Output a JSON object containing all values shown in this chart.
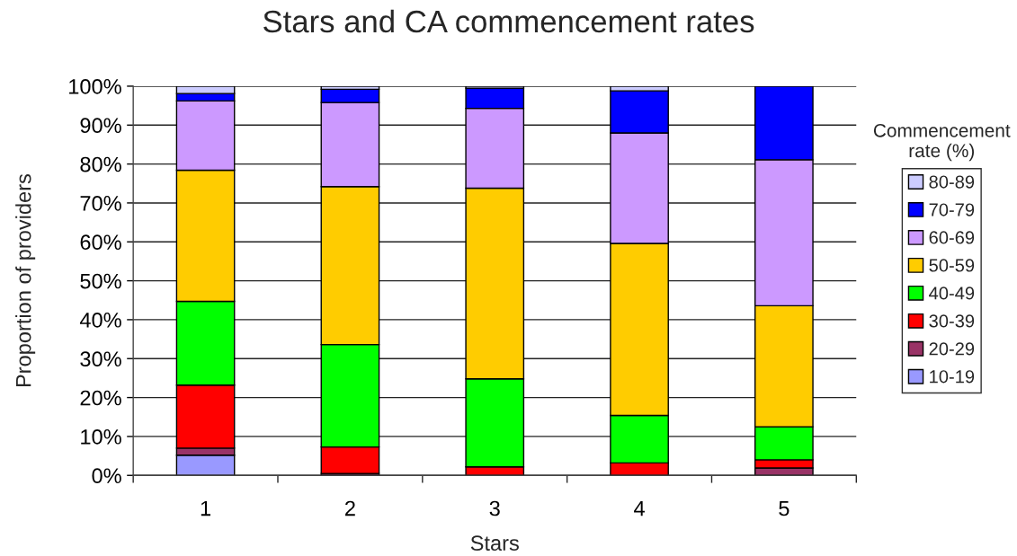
{
  "chart_data": {
    "type": "bar",
    "title": "Stars and CA commencement rates",
    "xlabel": "Stars",
    "ylabel": "Proportion of providers",
    "legend_title": "Commencement\nrate (%)",
    "categories": [
      "1",
      "2",
      "3",
      "4",
      "5"
    ],
    "stacked": true,
    "series": [
      {
        "name": "10-19",
        "color": "#9999ff",
        "values": [
          5.2,
          null,
          null,
          null,
          null
        ]
      },
      {
        "name": "20-29",
        "color": "#993366",
        "values": [
          1.8,
          0.5,
          null,
          null,
          1.9
        ]
      },
      {
        "name": "30-39",
        "color": "#ff0000",
        "values": [
          16.2,
          6.8,
          2.2,
          3.2,
          2.1
        ]
      },
      {
        "name": "40-49",
        "color": "#00ff00",
        "values": [
          21.5,
          26.3,
          22.6,
          12.2,
          8.5
        ]
      },
      {
        "name": "50-59",
        "color": "#ffcc00",
        "values": [
          33.7,
          40.6,
          49.0,
          44.2,
          31.1
        ]
      },
      {
        "name": "60-69",
        "color": "#cc99ff",
        "values": [
          17.8,
          21.6,
          20.5,
          28.4,
          37.5
        ]
      },
      {
        "name": "70-79",
        "color": "#0000ff",
        "values": [
          1.9,
          3.4,
          5.2,
          10.8,
          18.9
        ]
      },
      {
        "name": "80-89",
        "color": "#ccccff",
        "values": [
          1.9,
          0.8,
          0.5,
          1.2,
          null
        ]
      }
    ],
    "ylim": [
      0,
      100
    ],
    "yticks": [
      {
        "value": 0,
        "label": "0%"
      },
      {
        "value": 10,
        "label": "10%"
      },
      {
        "value": 20,
        "label": "20%"
      },
      {
        "value": 30,
        "label": "30%"
      },
      {
        "value": 40,
        "label": "40%"
      },
      {
        "value": 50,
        "label": "50%"
      },
      {
        "value": 60,
        "label": "60%"
      },
      {
        "value": 70,
        "label": "70%"
      },
      {
        "value": 80,
        "label": "80%"
      },
      {
        "value": 90,
        "label": "90%"
      },
      {
        "value": 100,
        "label": "100%"
      }
    ],
    "grid": "y",
    "legend": "right"
  }
}
